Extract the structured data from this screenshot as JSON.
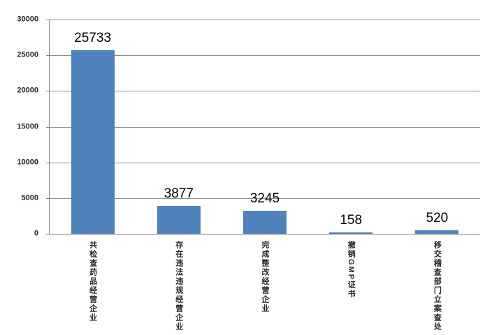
{
  "colors": {
    "bar": "#4f81bd",
    "gridline": "#8e8e8e",
    "axis": "#7f7f7f",
    "tick_label": "#262626",
    "data_label": "#000000",
    "background": "#ffffff"
  },
  "chart_data": {
    "type": "bar",
    "title": "",
    "xlabel": "",
    "ylabel": "",
    "categories": [
      "共检查药品经营企业",
      "存在违法违规经营企业",
      "完成整改经营企业",
      "撤销GMP证书",
      "移交稽查部门立案查处"
    ],
    "values": [
      25733,
      3877,
      3245,
      158,
      520
    ],
    "data_labels": [
      "25733",
      "3877",
      "3245",
      "158",
      "520"
    ],
    "ylim": [
      0,
      30000
    ],
    "ytick_step": 5000,
    "yticks": [
      0,
      5000,
      10000,
      15000,
      20000,
      25000,
      30000
    ],
    "ytick_labels": [
      "0",
      "5000",
      "10000",
      "15000",
      "20000",
      "25000",
      "30000"
    ],
    "grid": true,
    "legend": false,
    "data_label_position": "above-bar",
    "category_label_orientation": "vertical"
  }
}
